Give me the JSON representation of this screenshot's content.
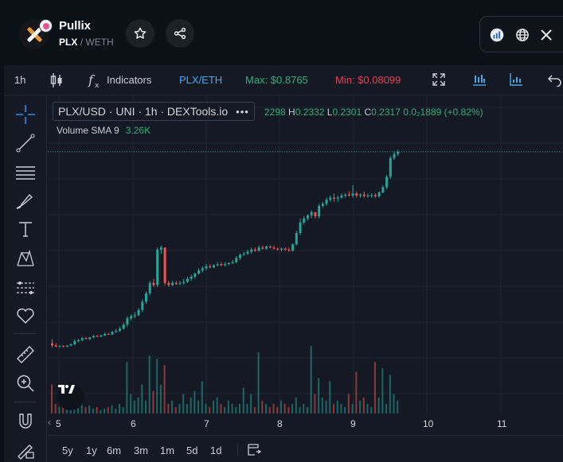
{
  "header": {
    "token_name": "Pullix",
    "symbol": "PLX",
    "separator": "/",
    "quote": "WETH"
  },
  "social_icons": [
    "analytics-icon",
    "globe-icon",
    "x-twitter-icon"
  ],
  "toolbar": {
    "interval": "1h",
    "indicators_label": "Indicators",
    "pair": "PLX/ETH",
    "max_label": "Max: $0.8765",
    "min_label": "Min: $0.08099"
  },
  "legend": {
    "title": "PLX/USD · UNI · 1h · DEXTools.io",
    "more": "•••",
    "ohlc": {
      "open_value": "2298",
      "high_key": "H",
      "high_value": "0.2332",
      "low_key": "L",
      "low_value": "0.2301",
      "close_key": "C",
      "close_value": "0.2317",
      "change": "0.0₂1889 (+0.82%)"
    },
    "volume_label": "Volume SMA 9",
    "volume_value": "3.26K"
  },
  "x_axis": {
    "ticks": [
      "5",
      "6",
      "7",
      "8",
      "9",
      "10",
      "11"
    ]
  },
  "range_buttons": [
    "5y",
    "1y",
    "6m",
    "3m",
    "1m",
    "5d",
    "1d"
  ],
  "colors": {
    "up": "#26a69a",
    "down": "#ef5350",
    "accent": "#4aa7e8",
    "max_green": "#33b07a",
    "min_red": "#e2424f"
  },
  "chart_data": {
    "type": "candlestick",
    "x_ticks": [
      "5",
      "6",
      "7",
      "8",
      "9",
      "10",
      "11"
    ],
    "candles": [
      [
        0.12,
        0.14,
        0.1,
        0.11
      ],
      [
        0.11,
        0.12,
        0.1,
        0.105
      ],
      [
        0.105,
        0.11,
        0.1,
        0.108
      ],
      [
        0.108,
        0.11,
        0.1,
        0.104
      ],
      [
        0.104,
        0.11,
        0.1,
        0.109
      ],
      [
        0.109,
        0.12,
        0.105,
        0.115
      ],
      [
        0.115,
        0.14,
        0.11,
        0.13
      ],
      [
        0.13,
        0.14,
        0.125,
        0.135
      ],
      [
        0.135,
        0.15,
        0.13,
        0.145
      ],
      [
        0.145,
        0.15,
        0.14,
        0.14
      ],
      [
        0.14,
        0.15,
        0.135,
        0.148
      ],
      [
        0.148,
        0.16,
        0.145,
        0.155
      ],
      [
        0.155,
        0.16,
        0.15,
        0.152
      ],
      [
        0.152,
        0.16,
        0.15,
        0.158
      ],
      [
        0.158,
        0.17,
        0.155,
        0.165
      ],
      [
        0.165,
        0.17,
        0.16,
        0.162
      ],
      [
        0.162,
        0.18,
        0.16,
        0.175
      ],
      [
        0.175,
        0.19,
        0.17,
        0.18
      ],
      [
        0.18,
        0.2,
        0.175,
        0.19
      ],
      [
        0.19,
        0.22,
        0.185,
        0.21
      ],
      [
        0.21,
        0.25,
        0.2,
        0.24
      ],
      [
        0.24,
        0.26,
        0.23,
        0.25
      ],
      [
        0.25,
        0.27,
        0.24,
        0.255
      ],
      [
        0.255,
        0.29,
        0.25,
        0.28
      ],
      [
        0.28,
        0.33,
        0.27,
        0.32
      ],
      [
        0.32,
        0.37,
        0.31,
        0.36
      ],
      [
        0.36,
        0.42,
        0.35,
        0.41
      ],
      [
        0.41,
        0.43,
        0.39,
        0.4
      ],
      [
        0.4,
        0.58,
        0.39,
        0.57
      ],
      [
        0.57,
        0.59,
        0.55,
        0.58
      ],
      [
        0.58,
        0.58,
        0.4,
        0.41
      ],
      [
        0.41,
        0.42,
        0.39,
        0.4
      ],
      [
        0.4,
        0.42,
        0.395,
        0.41
      ],
      [
        0.41,
        0.42,
        0.4,
        0.405
      ],
      [
        0.405,
        0.42,
        0.4,
        0.41
      ],
      [
        0.41,
        0.43,
        0.4,
        0.415
      ],
      [
        0.415,
        0.44,
        0.41,
        0.43
      ],
      [
        0.43,
        0.45,
        0.42,
        0.44
      ],
      [
        0.44,
        0.46,
        0.43,
        0.455
      ],
      [
        0.455,
        0.48,
        0.45,
        0.47
      ],
      [
        0.47,
        0.49,
        0.46,
        0.48
      ],
      [
        0.48,
        0.5,
        0.47,
        0.49
      ],
      [
        0.49,
        0.5,
        0.48,
        0.485
      ],
      [
        0.485,
        0.5,
        0.48,
        0.495
      ],
      [
        0.495,
        0.51,
        0.49,
        0.5
      ],
      [
        0.5,
        0.51,
        0.49,
        0.495
      ],
      [
        0.495,
        0.51,
        0.49,
        0.5
      ],
      [
        0.5,
        0.51,
        0.495,
        0.505
      ],
      [
        0.505,
        0.52,
        0.5,
        0.51
      ],
      [
        0.51,
        0.54,
        0.505,
        0.53
      ],
      [
        0.53,
        0.55,
        0.52,
        0.545
      ],
      [
        0.545,
        0.56,
        0.54,
        0.55
      ],
      [
        0.55,
        0.57,
        0.545,
        0.56
      ],
      [
        0.56,
        0.58,
        0.55,
        0.57
      ],
      [
        0.57,
        0.58,
        0.56,
        0.565
      ],
      [
        0.565,
        0.59,
        0.56,
        0.58
      ],
      [
        0.58,
        0.59,
        0.57,
        0.575
      ],
      [
        0.575,
        0.59,
        0.57,
        0.585
      ],
      [
        0.585,
        0.59,
        0.575,
        0.58
      ],
      [
        0.58,
        0.59,
        0.57,
        0.575
      ],
      [
        0.575,
        0.58,
        0.565,
        0.57
      ],
      [
        0.57,
        0.58,
        0.56,
        0.575
      ],
      [
        0.575,
        0.58,
        0.565,
        0.57
      ],
      [
        0.57,
        0.58,
        0.56,
        0.565
      ],
      [
        0.565,
        0.6,
        0.56,
        0.595
      ],
      [
        0.595,
        0.66,
        0.59,
        0.65
      ],
      [
        0.65,
        0.72,
        0.64,
        0.7
      ],
      [
        0.7,
        0.73,
        0.69,
        0.72
      ],
      [
        0.72,
        0.74,
        0.71,
        0.735
      ],
      [
        0.735,
        0.76,
        0.72,
        0.75
      ],
      [
        0.75,
        0.75,
        0.72,
        0.73
      ],
      [
        0.73,
        0.79,
        0.72,
        0.78
      ],
      [
        0.78,
        0.8,
        0.77,
        0.79
      ],
      [
        0.79,
        0.82,
        0.78,
        0.81
      ],
      [
        0.81,
        0.83,
        0.8,
        0.82
      ],
      [
        0.82,
        0.84,
        0.8,
        0.815
      ],
      [
        0.815,
        0.83,
        0.8,
        0.82
      ],
      [
        0.82,
        0.84,
        0.815,
        0.83
      ],
      [
        0.83,
        0.84,
        0.82,
        0.835
      ],
      [
        0.835,
        0.85,
        0.825,
        0.83
      ],
      [
        0.83,
        0.88,
        0.82,
        0.84
      ],
      [
        0.84,
        0.85,
        0.82,
        0.83
      ],
      [
        0.83,
        0.84,
        0.82,
        0.835
      ],
      [
        0.835,
        0.85,
        0.82,
        0.828
      ],
      [
        0.828,
        0.84,
        0.82,
        0.83
      ],
      [
        0.83,
        0.84,
        0.82,
        0.832
      ],
      [
        0.832,
        0.84,
        0.82,
        0.826
      ],
      [
        0.826,
        0.85,
        0.82,
        0.845
      ],
      [
        0.845,
        0.88,
        0.84,
        0.87
      ],
      [
        0.87,
        0.93,
        0.86,
        0.92
      ],
      [
        0.92,
        1.02,
        0.91,
        1.01
      ],
      [
        1.01,
        1.04,
        1.0,
        1.03
      ],
      [
        1.03,
        1.05,
        1.02,
        1.04
      ]
    ],
    "volumes": [
      0.9,
      0.3,
      0.2,
      0.35,
      0.25,
      0.15,
      0.3,
      0.2,
      0.4,
      0.2,
      0.25,
      0.15,
      0.2,
      0.1,
      0.15,
      0.2,
      0.25,
      0.15,
      0.3,
      0.2,
      1.6,
      0.6,
      0.4,
      0.5,
      0.9,
      0.4,
      1.8,
      0.7,
      1.7,
      0.9,
      1.5,
      0.3,
      0.4,
      0.2,
      0.3,
      0.6,
      0.3,
      0.5,
      0.7,
      0.4,
      1.0,
      0.3,
      0.2,
      0.4,
      0.5,
      0.3,
      0.2,
      0.4,
      0.3,
      0.2,
      0.3,
      0.8,
      0.3,
      0.6,
      0.2,
      1.9,
      0.4,
      0.3,
      0.2,
      0.3,
      0.2,
      0.4,
      0.3,
      0.2,
      0.3,
      0.5,
      0.2,
      0.3,
      0.2,
      2.1,
      0.6,
      1.1,
      0.5,
      0.4,
      1.0,
      0.3,
      0.4,
      0.3,
      0.2,
      0.6,
      0.3,
      1.3,
      0.4,
      0.5,
      0.3,
      0.2,
      1.6,
      0.5,
      1.4,
      0.3,
      1.2,
      0.6,
      0.4
    ],
    "ylim": [
      0.05,
      1.12
    ]
  }
}
